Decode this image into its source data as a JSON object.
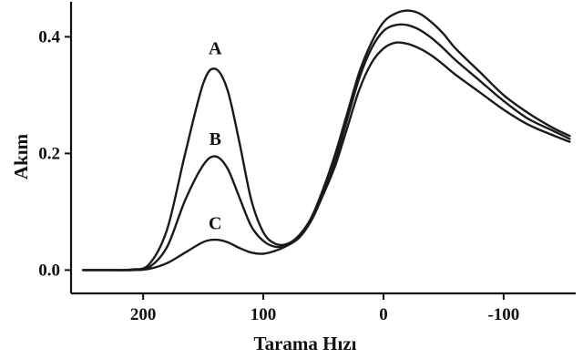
{
  "chart_data": {
    "type": "line",
    "xlabel": "Tarama Hızı",
    "ylabel": "Akım",
    "xlim": [
      260,
      -160
    ],
    "ylim": [
      -0.04,
      0.46
    ],
    "x_ticks": [
      {
        "value": 200,
        "label": "200"
      },
      {
        "value": 100,
        "label": "100"
      },
      {
        "value": 0,
        "label": "0"
      },
      {
        "value": -100,
        "label": "-100"
      }
    ],
    "y_ticks": [
      {
        "value": 0.0,
        "label": "0.0"
      },
      {
        "value": 0.2,
        "label": "0.2"
      },
      {
        "value": 0.4,
        "label": "0.4"
      }
    ],
    "grid": false,
    "legend": "none",
    "series": [
      {
        "name": "A",
        "label_at": [
          140,
          0.37
        ],
        "x": [
          250,
          230,
          210,
          195,
          180,
          165,
          150,
          140,
          130,
          120,
          110,
          100,
          90,
          80,
          70,
          60,
          50,
          40,
          30,
          20,
          10,
          0,
          -10,
          -20,
          -30,
          -40,
          -50,
          -60,
          -80,
          -100,
          -120,
          -140,
          -155
        ],
        "y": [
          0.0,
          0.0,
          0.001,
          0.01,
          0.07,
          0.2,
          0.32,
          0.345,
          0.31,
          0.22,
          0.12,
          0.065,
          0.045,
          0.045,
          0.06,
          0.09,
          0.14,
          0.2,
          0.27,
          0.34,
          0.39,
          0.425,
          0.44,
          0.445,
          0.44,
          0.425,
          0.405,
          0.38,
          0.34,
          0.3,
          0.27,
          0.245,
          0.23
        ]
      },
      {
        "name": "B",
        "label_at": [
          140,
          0.215
        ],
        "x": [
          250,
          230,
          210,
          195,
          180,
          165,
          150,
          140,
          130,
          120,
          110,
          100,
          90,
          80,
          70,
          60,
          50,
          40,
          30,
          20,
          10,
          0,
          -10,
          -20,
          -30,
          -40,
          -50,
          -60,
          -80,
          -100,
          -120,
          -140,
          -155
        ],
        "y": [
          0.0,
          0.0,
          0.0,
          0.005,
          0.04,
          0.12,
          0.18,
          0.195,
          0.175,
          0.125,
          0.075,
          0.05,
          0.04,
          0.043,
          0.058,
          0.088,
          0.135,
          0.19,
          0.26,
          0.33,
          0.38,
          0.41,
          0.42,
          0.42,
          0.412,
          0.398,
          0.38,
          0.36,
          0.325,
          0.29,
          0.26,
          0.24,
          0.225
        ]
      },
      {
        "name": "C",
        "label_at": [
          140,
          0.07
        ],
        "x": [
          250,
          230,
          210,
          195,
          180,
          165,
          150,
          140,
          130,
          120,
          110,
          100,
          90,
          80,
          70,
          60,
          50,
          40,
          30,
          20,
          10,
          0,
          -10,
          -20,
          -30,
          -40,
          -50,
          -60,
          -80,
          -100,
          -120,
          -140,
          -155
        ],
        "y": [
          0.0,
          0.0,
          0.0,
          0.002,
          0.012,
          0.03,
          0.048,
          0.052,
          0.048,
          0.038,
          0.03,
          0.028,
          0.033,
          0.042,
          0.056,
          0.085,
          0.13,
          0.18,
          0.245,
          0.31,
          0.355,
          0.38,
          0.39,
          0.388,
          0.38,
          0.368,
          0.352,
          0.335,
          0.305,
          0.275,
          0.25,
          0.232,
          0.22
        ]
      }
    ]
  }
}
